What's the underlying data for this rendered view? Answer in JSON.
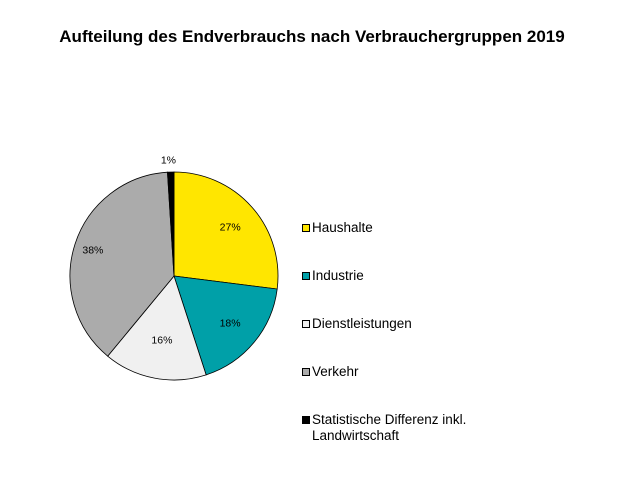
{
  "chart_data": {
    "type": "pie",
    "title": "Aufteilung des Endverbrauchs nach Verbrauchergruppen 2019",
    "slices": [
      {
        "label": "Haushalte",
        "value": 27,
        "display": "27%",
        "color": "#FFE600"
      },
      {
        "label": "Industrie",
        "value": 18,
        "display": "18%",
        "color": "#00A0A8"
      },
      {
        "label": "Dienstleistungen",
        "value": 16,
        "display": "16%",
        "color": "#F0F0F0"
      },
      {
        "label": "Verkehr",
        "value": 38,
        "display": "38%",
        "color": "#ABABAB"
      },
      {
        "label": "Statistische Differenz inkl. Landwirtschaft",
        "value": 1,
        "display": "1%",
        "color": "#000000"
      }
    ],
    "legend_position": "right"
  }
}
